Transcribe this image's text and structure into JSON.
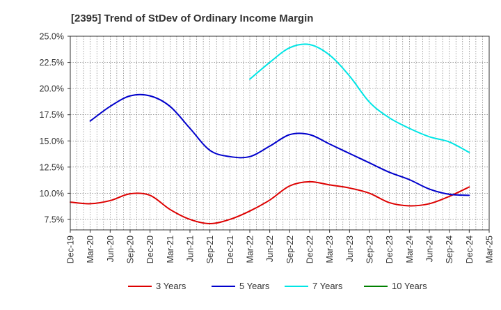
{
  "chart_data": {
    "type": "line",
    "title": "[2395]  Trend of StDev of Ordinary Income Margin",
    "xlabel": "",
    "ylabel": "",
    "x_ticks": [
      "Dec-19",
      "Mar-20",
      "Jun-20",
      "Sep-20",
      "Dec-20",
      "Mar-21",
      "Jun-21",
      "Sep-21",
      "Dec-21",
      "Mar-22",
      "Jun-22",
      "Sep-22",
      "Dec-22",
      "Mar-23",
      "Jun-23",
      "Sep-23",
      "Dec-23",
      "Mar-24",
      "Jun-24",
      "Sep-24",
      "Dec-24",
      "Mar-25"
    ],
    "y_ticks": [
      "25.0%",
      "22.5%",
      "20.0%",
      "17.5%",
      "15.0%",
      "12.5%",
      "10.0%",
      "7.5%"
    ],
    "ylim": [
      6.5,
      25.0
    ],
    "grid": true,
    "legend_position": "bottom",
    "series": [
      {
        "name": "3 Years",
        "color": "#dd0000",
        "points": [
          [
            "Dec-19",
            9.15
          ],
          [
            "Mar-20",
            9.0
          ],
          [
            "Jun-20",
            9.3
          ],
          [
            "Sep-20",
            9.95
          ],
          [
            "Dec-20",
            9.8
          ],
          [
            "Mar-21",
            8.45
          ],
          [
            "Jun-21",
            7.5
          ],
          [
            "Sep-21",
            7.1
          ],
          [
            "Dec-21",
            7.5
          ],
          [
            "Mar-22",
            8.3
          ],
          [
            "Jun-22",
            9.35
          ],
          [
            "Sep-22",
            10.7
          ],
          [
            "Dec-22",
            11.1
          ],
          [
            "Mar-23",
            10.8
          ],
          [
            "Jun-23",
            10.5
          ],
          [
            "Sep-23",
            10.0
          ],
          [
            "Dec-23",
            9.1
          ],
          [
            "Mar-24",
            8.8
          ],
          [
            "Jun-24",
            9.0
          ],
          [
            "Sep-24",
            9.7
          ],
          [
            "Dec-24",
            10.6
          ]
        ]
      },
      {
        "name": "5 Years",
        "color": "#0000cc",
        "points": [
          [
            "Mar-20",
            16.9
          ],
          [
            "Jun-20",
            18.3
          ],
          [
            "Sep-20",
            19.3
          ],
          [
            "Dec-20",
            19.3
          ],
          [
            "Mar-21",
            18.3
          ],
          [
            "Jun-21",
            16.2
          ],
          [
            "Sep-21",
            14.1
          ],
          [
            "Dec-21",
            13.5
          ],
          [
            "Mar-22",
            13.5
          ],
          [
            "Jun-22",
            14.5
          ],
          [
            "Sep-22",
            15.6
          ],
          [
            "Dec-22",
            15.6
          ],
          [
            "Mar-23",
            14.7
          ],
          [
            "Jun-23",
            13.8
          ],
          [
            "Sep-23",
            12.9
          ],
          [
            "Dec-23",
            12.0
          ],
          [
            "Mar-24",
            11.3
          ],
          [
            "Jun-24",
            10.4
          ],
          [
            "Sep-24",
            9.9
          ],
          [
            "Dec-24",
            9.8
          ]
        ]
      },
      {
        "name": "7 Years",
        "color": "#00e5e5",
        "points": [
          [
            "Mar-22",
            20.9
          ],
          [
            "Jun-22",
            22.5
          ],
          [
            "Sep-22",
            23.9
          ],
          [
            "Dec-22",
            24.2
          ],
          [
            "Mar-23",
            23.2
          ],
          [
            "Jun-23",
            21.2
          ],
          [
            "Sep-23",
            18.7
          ],
          [
            "Dec-23",
            17.2
          ],
          [
            "Mar-24",
            16.2
          ],
          [
            "Jun-24",
            15.4
          ],
          [
            "Sep-24",
            14.9
          ],
          [
            "Dec-24",
            13.9
          ]
        ]
      },
      {
        "name": "10 Years",
        "color": "#008000",
        "points": []
      }
    ]
  }
}
